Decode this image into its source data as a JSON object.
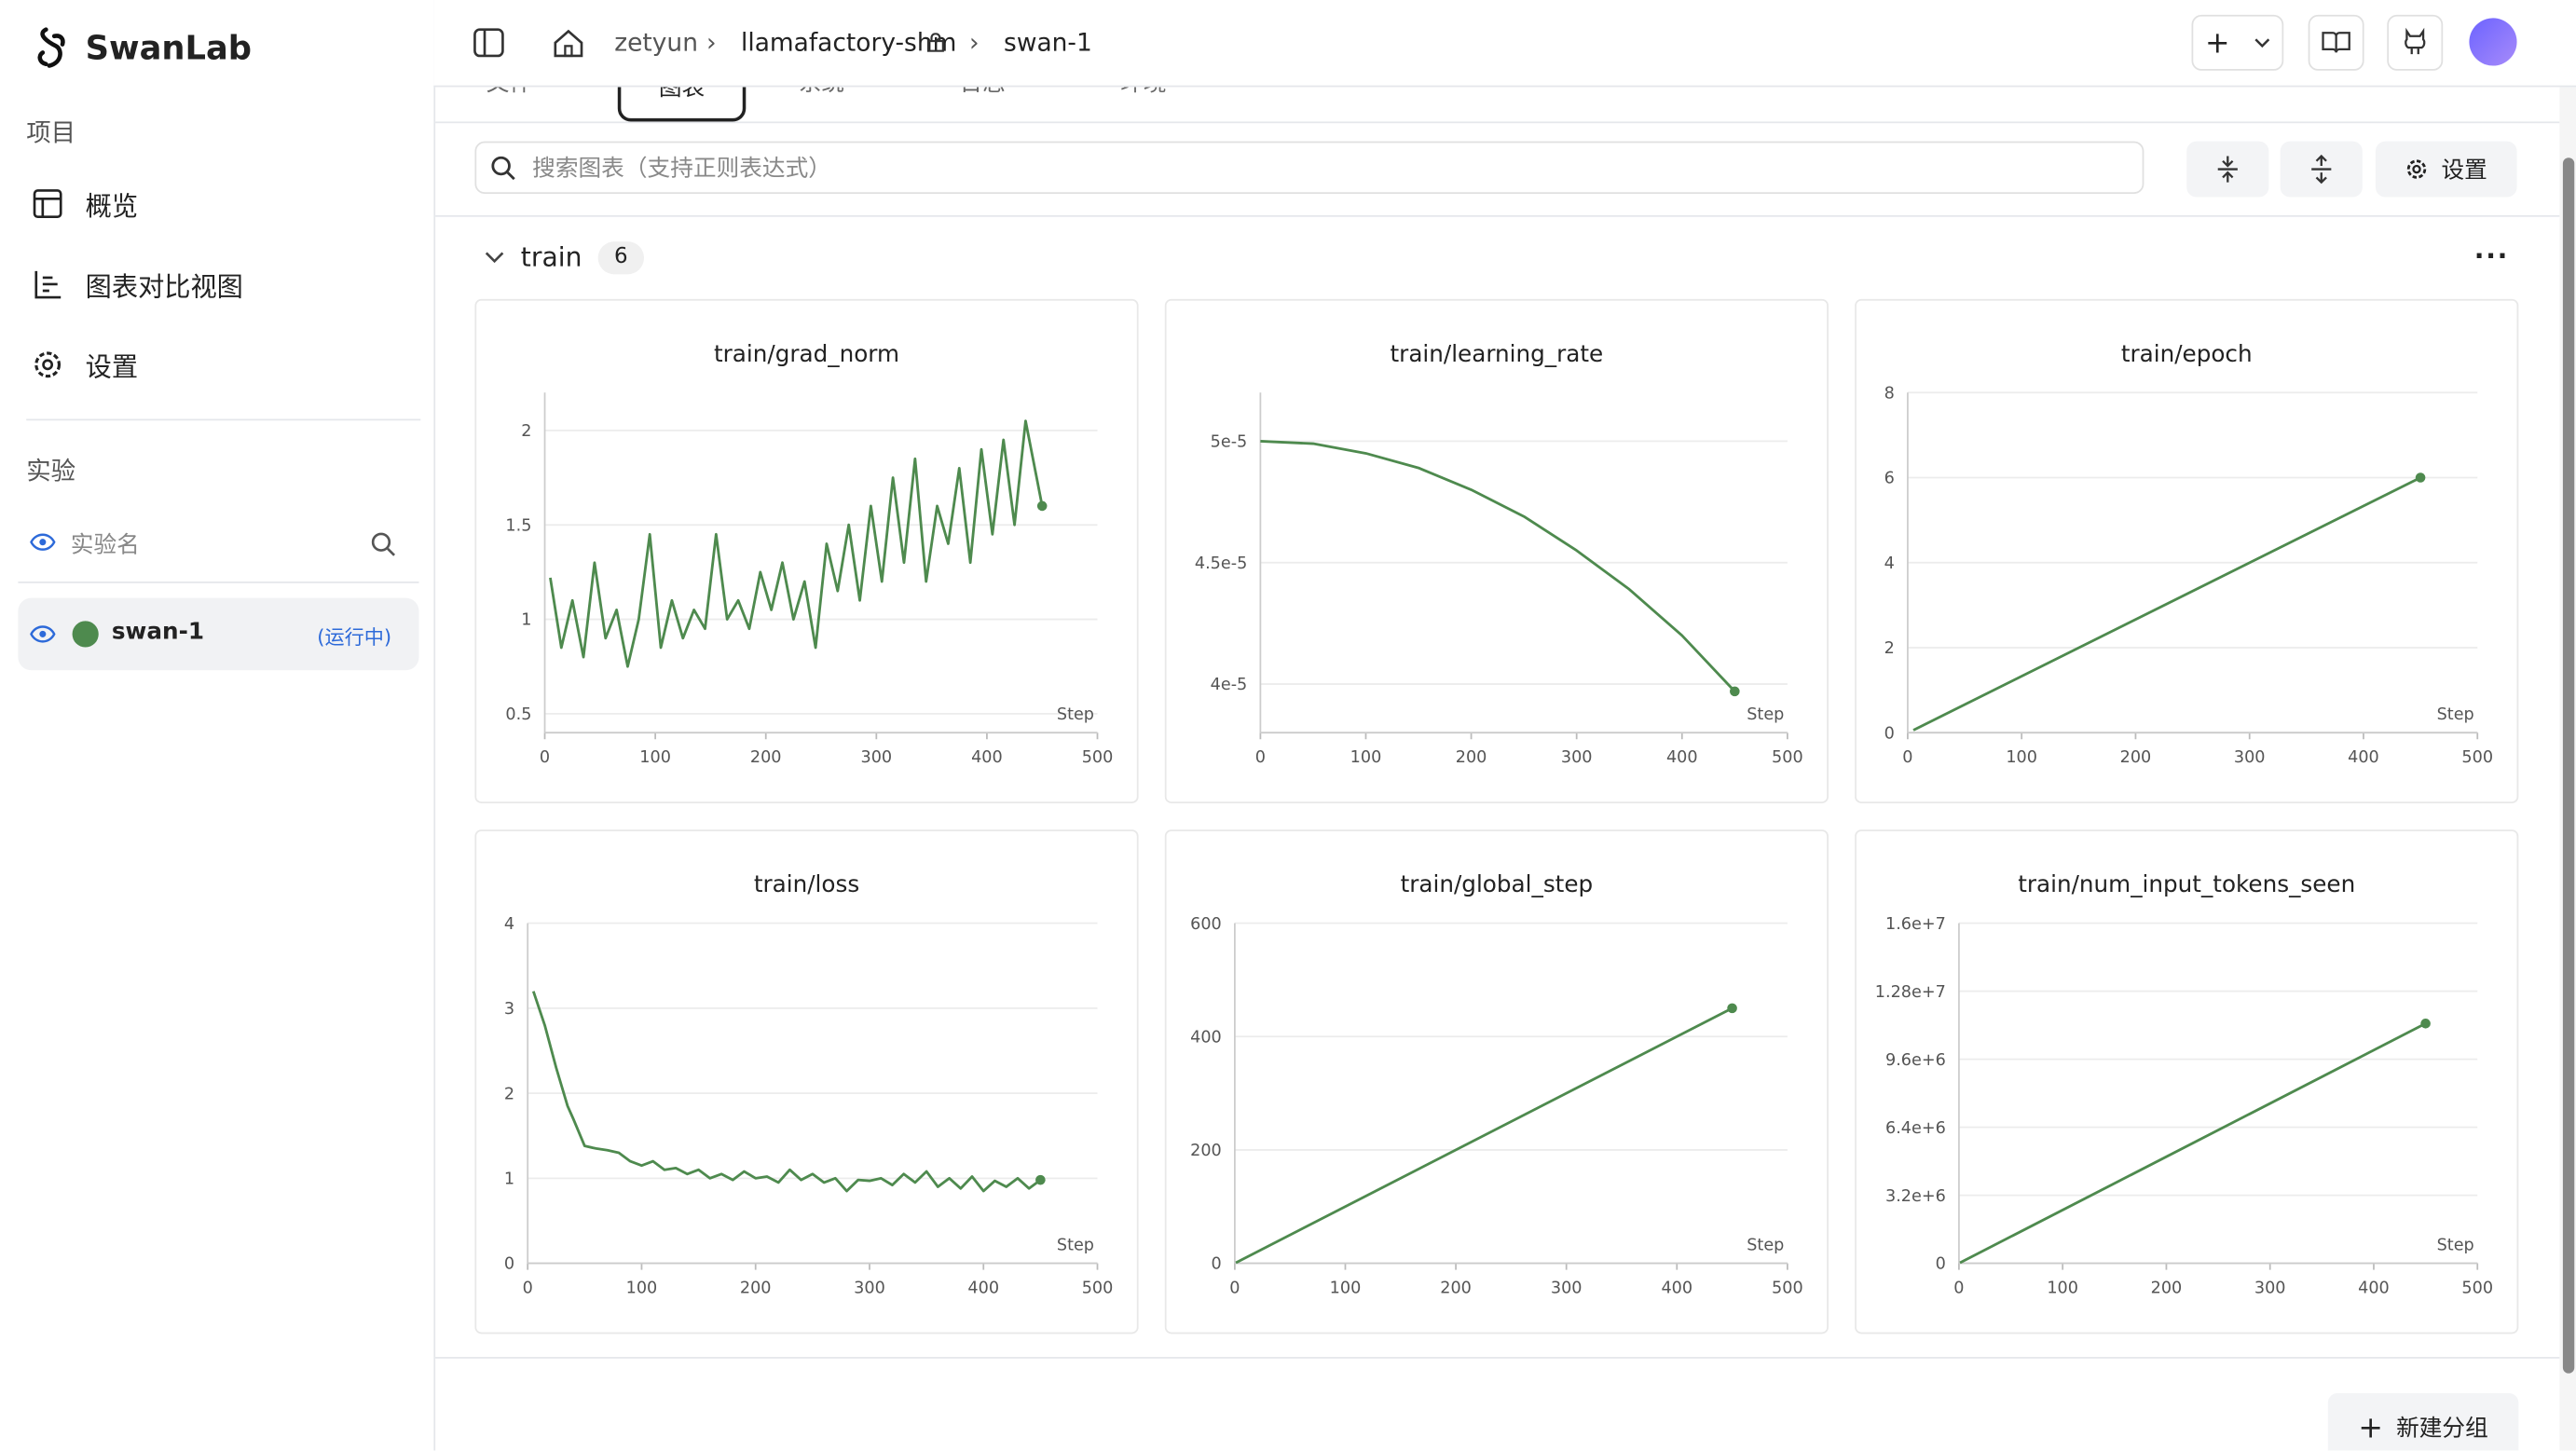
{
  "sidebar": {
    "brand": "SwanLab",
    "project_heading": "项目",
    "nav": [
      "概览",
      "图表对比视图",
      "设置"
    ],
    "experiments_heading": "实验",
    "search_placeholder": "实验名",
    "experiment": {
      "name": "swan-1",
      "status": "(运行中)"
    }
  },
  "header": {
    "breadcrumb": [
      "zetyun",
      "llamafactory-shm",
      "swan-1"
    ]
  },
  "tabs": [
    "文件",
    "图表",
    "系统",
    "日志",
    "环境"
  ],
  "toolbar": {
    "search_placeholder": "搜索图表（支持正则表达式）",
    "settings": "设置"
  },
  "group": {
    "name": "train",
    "count": 6
  },
  "new_group": "新建分组",
  "chart_data": [
    {
      "type": "line",
      "title": "train/grad_norm",
      "x_label": "Step",
      "xlim": [
        0,
        500
      ],
      "xticks": [
        0,
        100,
        200,
        300,
        400,
        500
      ],
      "ylim": [
        0.4,
        2.2
      ],
      "yticks": [
        0.5,
        1,
        1.5,
        2
      ],
      "grid": true,
      "x": [
        5,
        15,
        25,
        35,
        45,
        55,
        65,
        75,
        85,
        95,
        105,
        115,
        125,
        135,
        145,
        155,
        165,
        175,
        185,
        195,
        205,
        215,
        225,
        235,
        245,
        255,
        265,
        275,
        285,
        295,
        305,
        315,
        325,
        335,
        345,
        355,
        365,
        375,
        385,
        395,
        405,
        415,
        425,
        435,
        445,
        450
      ],
      "series": [
        {
          "color": "#4e8a4e",
          "values": [
            1.22,
            0.85,
            1.1,
            0.8,
            1.3,
            0.9,
            1.05,
            0.75,
            1.0,
            1.45,
            0.85,
            1.1,
            0.9,
            1.05,
            0.95,
            1.45,
            1.0,
            1.1,
            0.95,
            1.25,
            1.05,
            1.3,
            1.0,
            1.2,
            0.85,
            1.4,
            1.15,
            1.5,
            1.1,
            1.6,
            1.2,
            1.75,
            1.3,
            1.85,
            1.2,
            1.6,
            1.4,
            1.8,
            1.3,
            1.9,
            1.45,
            1.95,
            1.5,
            2.05,
            1.75,
            1.6
          ]
        }
      ]
    },
    {
      "type": "line",
      "title": "train/learning_rate",
      "x_label": "Step",
      "xlim": [
        0,
        500
      ],
      "xticks": [
        0,
        100,
        200,
        300,
        400,
        500
      ],
      "ylim": [
        3.8e-05,
        5.2e-05
      ],
      "yticks": [
        {
          "value": 4e-05,
          "label": "4e-5"
        },
        {
          "value": 4.5e-05,
          "label": "4.5e-5"
        },
        {
          "value": 5e-05,
          "label": "5e-5"
        }
      ],
      "grid": true,
      "x": [
        0,
        50,
        100,
        150,
        200,
        250,
        300,
        350,
        400,
        450
      ],
      "series": [
        {
          "color": "#4e8a4e",
          "values": [
            5e-05,
            4.99e-05,
            4.95e-05,
            4.89e-05,
            4.8e-05,
            4.69e-05,
            4.55e-05,
            4.39e-05,
            4.2e-05,
            3.97e-05
          ]
        }
      ]
    },
    {
      "type": "line",
      "title": "train/epoch",
      "x_label": "Step",
      "xlim": [
        0,
        500
      ],
      "xticks": [
        0,
        100,
        200,
        300,
        400,
        500
      ],
      "ylim": [
        0,
        8
      ],
      "yticks": [
        0,
        2,
        4,
        6,
        8
      ],
      "grid": true,
      "x": [
        5,
        450
      ],
      "series": [
        {
          "color": "#4e8a4e",
          "values": [
            0.06,
            6
          ]
        }
      ]
    },
    {
      "type": "line",
      "title": "train/loss",
      "x_label": "Step",
      "xlim": [
        0,
        500
      ],
      "xticks": [
        0,
        100,
        200,
        300,
        400,
        500
      ],
      "ylim": [
        0,
        4
      ],
      "yticks": [
        0,
        1,
        2,
        3,
        4
      ],
      "grid": true,
      "x": [
        5,
        15,
        25,
        35,
        40,
        50,
        60,
        70,
        80,
        90,
        100,
        110,
        120,
        130,
        140,
        150,
        160,
        170,
        180,
        190,
        200,
        210,
        220,
        230,
        240,
        250,
        260,
        270,
        280,
        290,
        300,
        310,
        320,
        330,
        340,
        350,
        360,
        370,
        380,
        390,
        400,
        410,
        420,
        430,
        440,
        450
      ],
      "series": [
        {
          "color": "#4e8a4e",
          "values": [
            3.2,
            2.8,
            2.3,
            1.85,
            1.7,
            1.38,
            1.35,
            1.33,
            1.3,
            1.2,
            1.15,
            1.2,
            1.1,
            1.12,
            1.05,
            1.1,
            1.0,
            1.05,
            0.98,
            1.08,
            1.0,
            1.02,
            0.95,
            1.1,
            0.98,
            1.05,
            0.95,
            1.0,
            0.85,
            0.98,
            0.97,
            1.0,
            0.92,
            1.05,
            0.95,
            1.08,
            0.9,
            1.0,
            0.88,
            1.02,
            0.85,
            0.97,
            0.9,
            1.0,
            0.88,
            0.98
          ]
        }
      ]
    },
    {
      "type": "line",
      "title": "train/global_step",
      "x_label": "Step",
      "xlim": [
        0,
        500
      ],
      "xticks": [
        0,
        100,
        200,
        300,
        400,
        500
      ],
      "ylim": [
        0,
        600
      ],
      "yticks": [
        0,
        200,
        400,
        600
      ],
      "grid": true,
      "x": [
        1,
        450
      ],
      "series": [
        {
          "color": "#4e8a4e",
          "values": [
            1,
            450
          ]
        }
      ]
    },
    {
      "type": "line",
      "title": "train/num_input_tokens_seen",
      "x_label": "Step",
      "xlim": [
        0,
        500
      ],
      "xticks": [
        0,
        100,
        200,
        300,
        400,
        500
      ],
      "ylim": [
        0,
        16000000
      ],
      "yticks": [
        0,
        {
          "value": 3200000,
          "label": "3.2e+6"
        },
        {
          "value": 6400000,
          "label": "6.4e+6"
        },
        {
          "value": 9600000,
          "label": "9.6e+6"
        },
        {
          "value": 12800000,
          "label": "1.28e+7"
        },
        {
          "value": 16000000,
          "label": "1.6e+7"
        }
      ],
      "grid": true,
      "x": [
        1,
        450
      ],
      "series": [
        {
          "color": "#4e8a4e",
          "values": [
            25000,
            11280000
          ]
        }
      ]
    }
  ]
}
